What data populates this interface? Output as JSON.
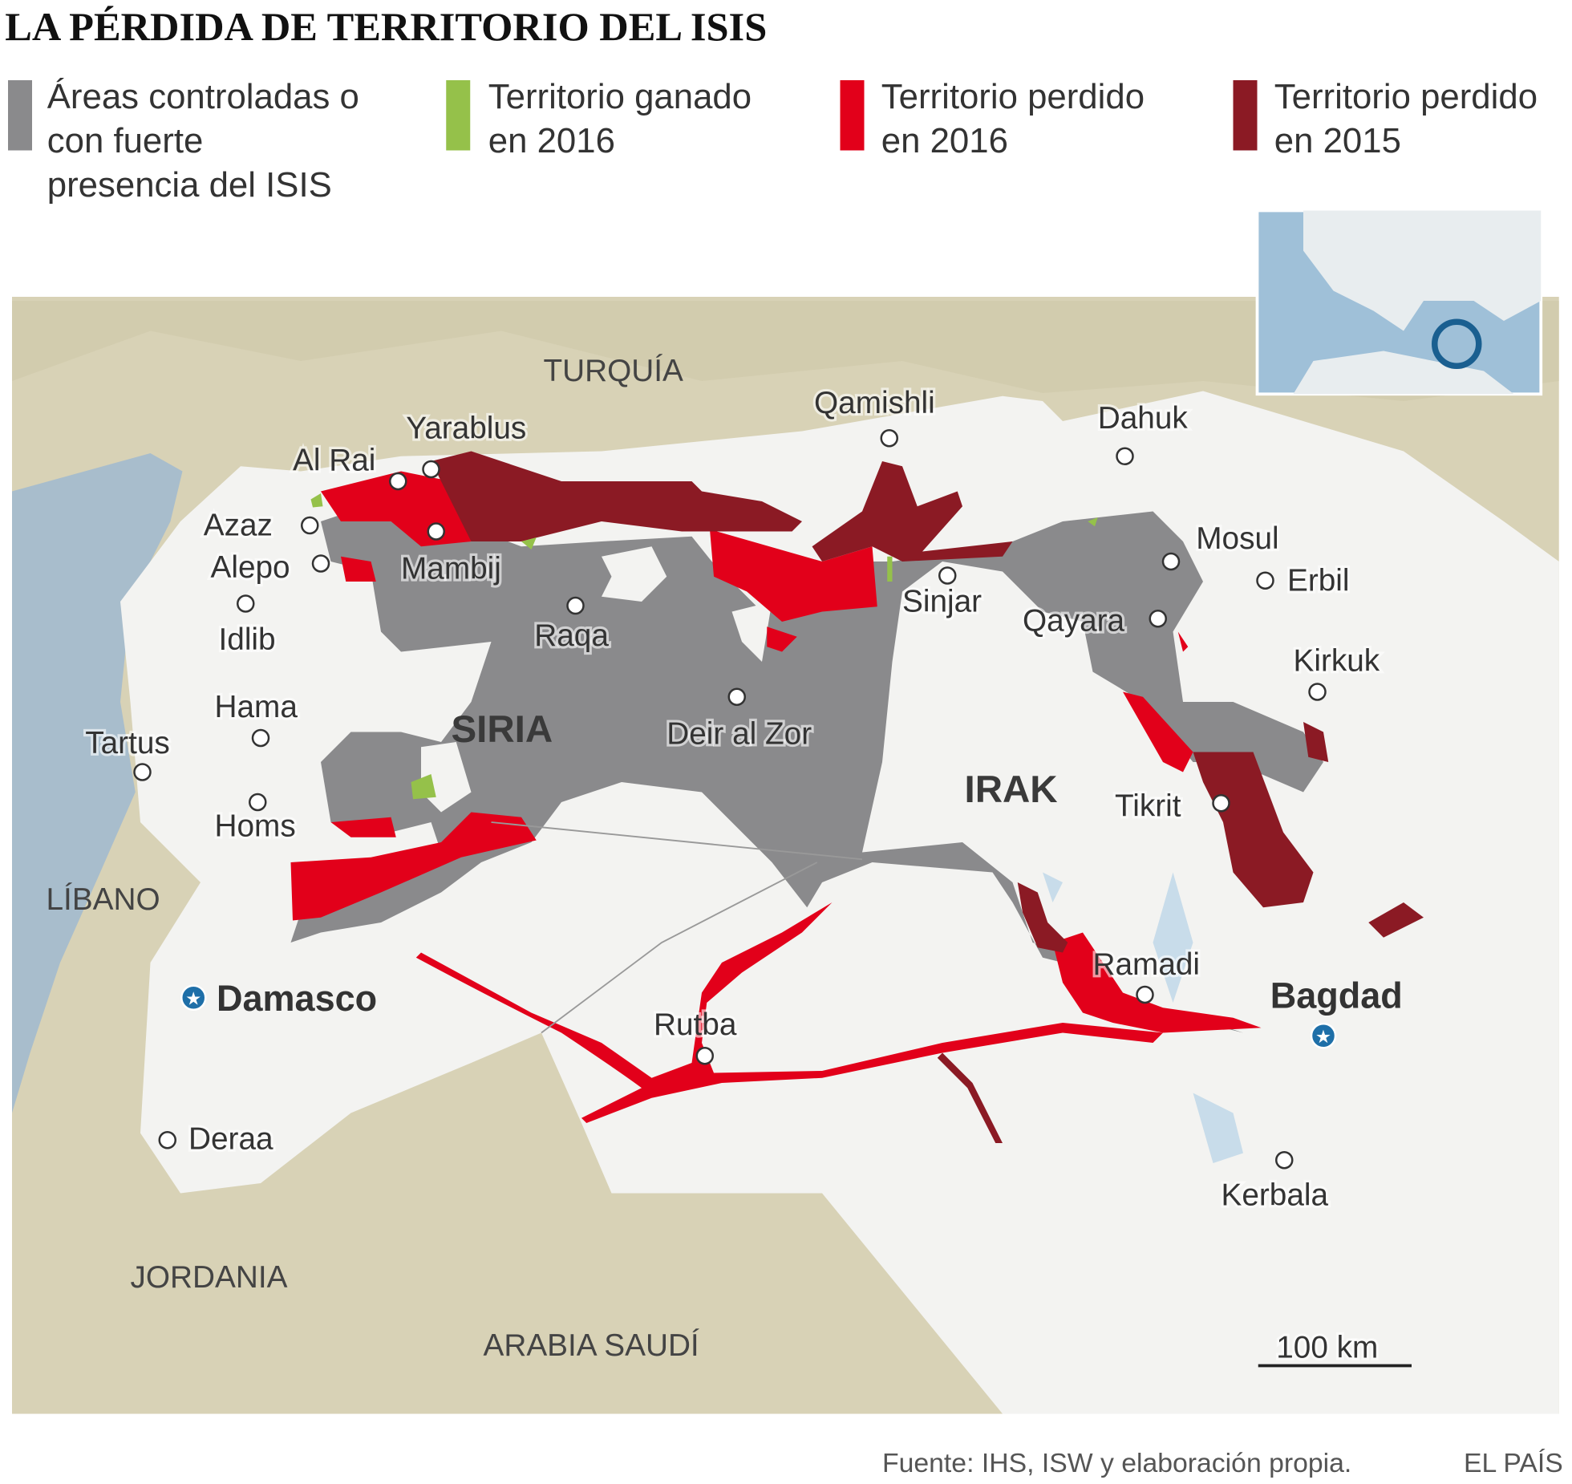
{
  "title": "LA PÉRDIDA DE TERRITORIO DEL ISIS",
  "legend": [
    {
      "lines": [
        "Áreas controladas o",
        "con fuerte",
        "presencia del ISIS"
      ],
      "color": "#8a8a8c"
    },
    {
      "lines": [
        "Territorio ganado",
        "en 2016"
      ],
      "color": "#95c14a"
    },
    {
      "lines": [
        "Territorio perdido",
        "en 2016"
      ],
      "color": "#e2001a"
    },
    {
      "lines": [
        "Territorio perdido",
        "en 2015"
      ],
      "color": "#8b1a24"
    }
  ],
  "countries": {
    "turquia": "TURQUÍA",
    "siria": "SIRIA",
    "irak": "IRAK",
    "libano": "LÍBANO",
    "jordania": "JORDANIA",
    "arabia": "ARABIA SAUDÍ"
  },
  "cities": {
    "yarablus": "Yarablus",
    "alrai": "Al Rai",
    "azaz": "Azaz",
    "alepo": "Alepo",
    "mambij": "Mambij",
    "idlib": "Idlib",
    "hama": "Hama",
    "tartus": "Tartus",
    "homs": "Homs",
    "raqa": "Raqa",
    "deir": "Deir al Zor",
    "qamishli": "Qamishli",
    "dahuk": "Dahuk",
    "mosul": "Mosul",
    "erbil": "Erbil",
    "sinjar": "Sinjar",
    "qayara": "Qayara",
    "kirkuk": "Kirkuk",
    "tikrit": "Tikrit",
    "ramadi": "Ramadi",
    "rutba": "Rutba",
    "deraa": "Deraa",
    "kerbala": "Kerbala"
  },
  "capitals": {
    "damasco": "Damasco",
    "bagdad": "Bagdad"
  },
  "scale_label": "100 km",
  "source": "Fuente: IHS, ISW y elaboración propia.",
  "brand": "EL PAÍS"
}
